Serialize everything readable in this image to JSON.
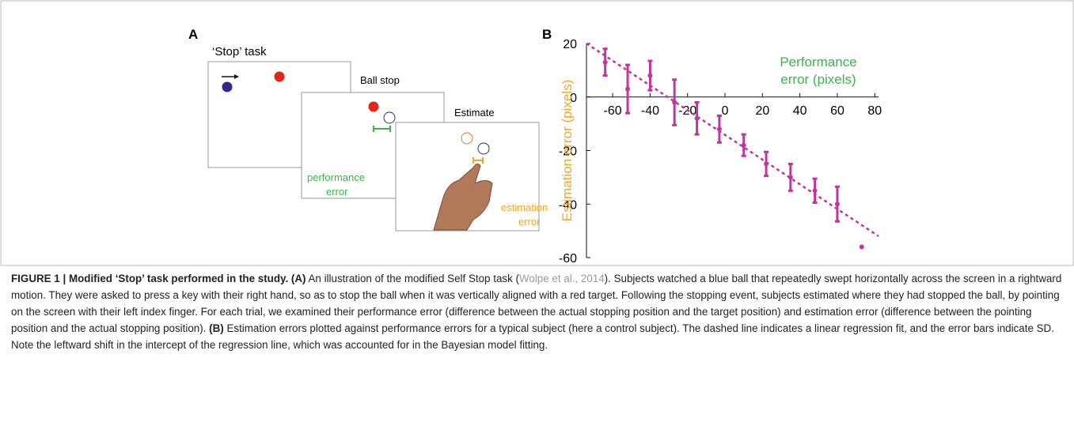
{
  "panel_a": {
    "label": "A",
    "task_title": "‘Stop’ task",
    "screen_2_title": "Ball stop",
    "screen_3_title": "Estimate",
    "performance_error_lines": [
      "performance",
      "error"
    ],
    "estimation_error_lines": [
      "estimation",
      "error"
    ]
  },
  "chart_data": {
    "type": "scatter",
    "panel_label": "B",
    "y_label": "Estimation error (pixels)",
    "x_label_lines": [
      "Performance",
      "error (pixels)"
    ],
    "x_label_color": "#3db54a",
    "y_label_color": "#f5a623",
    "xlim": [
      -74,
      82
    ],
    "ylim": [
      -60,
      20
    ],
    "xticks": [
      -60,
      -40,
      -20,
      0,
      20,
      40,
      60,
      80
    ],
    "yticks": [
      -60,
      -40,
      -20,
      0,
      20
    ],
    "series": [
      {
        "color": "#c0369c",
        "x": [
          -64,
          -52,
          -40,
          -27,
          -15,
          -3,
          10,
          22,
          35,
          48,
          60,
          73
        ],
        "values": [
          13,
          3,
          8,
          -2,
          -8,
          -12,
          -18,
          -25,
          -30,
          -35,
          -40,
          -56
        ],
        "errors": [
          5,
          9,
          5.5,
          8.5,
          6,
          5,
          4,
          4.5,
          5,
          4.5,
          6.5,
          null
        ]
      }
    ],
    "fit_line": {
      "x": [
        -74,
        82
      ],
      "y": [
        20,
        -52
      ]
    }
  },
  "caption": {
    "runs": [
      {
        "text": "FIGURE 1 | Modified ‘Stop’ task performed in the study. (A)",
        "style": "bold"
      },
      {
        "text": " An illustration of the modified Self Stop task (",
        "style": "normal"
      },
      {
        "text": "Wolpe et al., 2014",
        "style": "link"
      },
      {
        "text": "). Subjects watched a blue ball that repeatedly swept horizontally across the screen in a rightward motion. They were asked to press a key with their right hand, so as to stop the ball when it was vertically aligned with a red target. Following the stopping event, subjects estimated where they had stopped the ball, by pointing on the screen with their left index finger. For each trial, we examined their performance error (difference between the actual stopping position and the target position) and estimation error (difference between the pointing position and the actual stopping position). ",
        "style": "normal"
      },
      {
        "text": "(B)",
        "style": "bold"
      },
      {
        "text": " Estimation errors plotted against performance errors for a typical subject (here a control subject). The dashed line indicates a linear regression fit, and the error bars indicate SD. Note the leftward shift in the intercept of the regression line, which was accounted for in the Bayesian model fitting.",
        "style": "normal"
      }
    ]
  }
}
